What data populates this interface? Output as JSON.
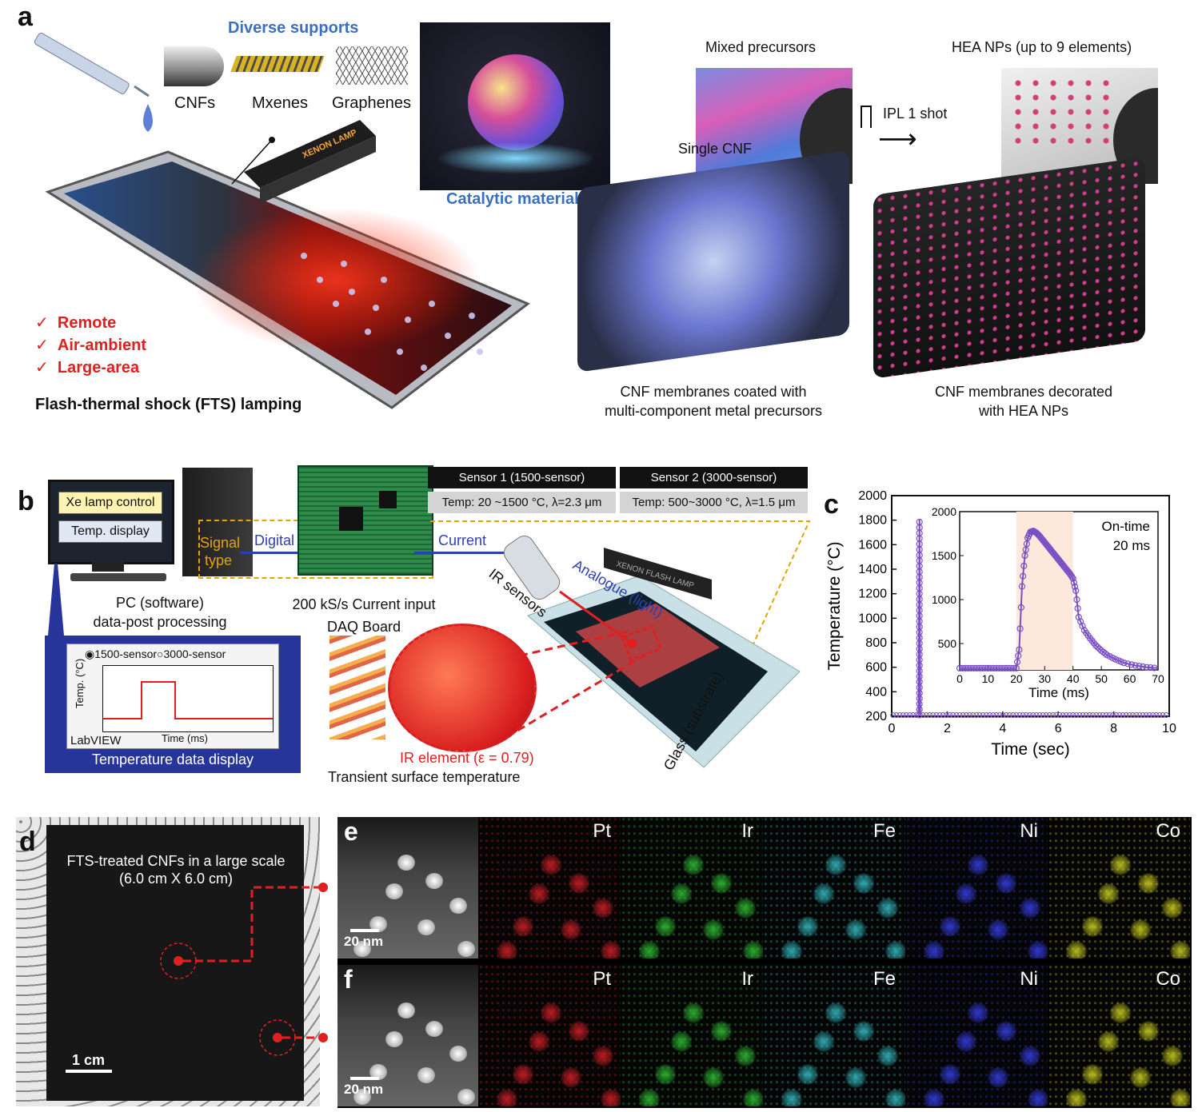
{
  "panel_a": {
    "label": "a",
    "supports_title": "Diverse supports",
    "supports": [
      "CNFs",
      "Mxenes",
      "Graphenes"
    ],
    "catalytic": "Catalytic materials",
    "lamp_text": "XENON LAMP",
    "features": [
      "Remote",
      "Air-ambient",
      "Large-area"
    ],
    "check": "✓",
    "fts_title": "Flash-thermal shock (FTS) lamping",
    "mixed_precursors": "Mixed precursors",
    "single_cnf": "Single CNF",
    "ipl": "IPL 1 shot",
    "hea_title": "HEA NPs (up to 9 elements)",
    "caption_left": [
      "CNF membranes coated with",
      "multi-component metal precursors"
    ],
    "caption_right": [
      "CNF membranes decorated",
      "with HEA NPs"
    ]
  },
  "panel_b": {
    "label": "b",
    "monitor_buttons": [
      "Xe lamp control",
      "Temp. display"
    ],
    "pc_caption": [
      "PC (software)",
      "data-post processing"
    ],
    "signal_type": [
      "Signal",
      "type"
    ],
    "digital": "Digital",
    "current": "Current",
    "daq_caption": [
      "200 kS/s Current input",
      "DAQ Board"
    ],
    "sensor1_head": "Sensor 1 (1500-sensor)",
    "sensor1_spec": "Temp: 20 ~1500 °C, λ=2.3 μm",
    "sensor2_head": "Sensor 2 (3000-sensor)",
    "sensor2_spec": "Temp: 500~3000 °C, λ=1.5 μm",
    "ir_sensors": "IR sensors",
    "analogue": "Analogue (light)",
    "flash_lamp": "XENON FLASH LAMP",
    "legend": [
      "1500-sensor",
      "3000-sensor"
    ],
    "temp_axis": "Temp. (°C)",
    "time_axis": "Time (ms)",
    "labview": "LabVIEW",
    "display_caption": "Temperature data display",
    "ir_element": "IR element (ε = 0.79)",
    "transient": "Transient surface temperature",
    "glass": "Glass (substrate)"
  },
  "panel_c": {
    "label": "c",
    "ylabel": "Temperature (°C)",
    "xlabel": "Time (sec)",
    "inset_xlabel": "Time (ms)",
    "inset_note": [
      "On-time",
      "20 ms"
    ]
  },
  "panel_d": {
    "label": "d",
    "title": [
      "FTS-treated CNFs in a large scale",
      "(6.0 cm X 6.0 cm)"
    ],
    "scalebar": "1 cm"
  },
  "panel_ef": {
    "labels": [
      "e",
      "f"
    ],
    "elements": [
      "Pt",
      "Ir",
      "Fe",
      "Ni",
      "Co"
    ],
    "element_colors": [
      "#e8232a",
      "#35d43a",
      "#3ad0d8",
      "#3a45ff",
      "#e2e626"
    ],
    "scalebar": "20 nm"
  },
  "chart_data": {
    "type": "scatter",
    "xlabel": "Time (sec)",
    "ylabel": "Temperature (°C)",
    "xlim": [
      0,
      10
    ],
    "ylim": [
      200,
      2000
    ],
    "xticks": [
      0,
      2,
      4,
      6,
      8,
      10
    ],
    "yticks": [
      200,
      400,
      600,
      800,
      1000,
      1200,
      1400,
      1600,
      1800,
      2000
    ],
    "main": {
      "baseline": 210,
      "peak_time": 1.0,
      "peak_value": 1810
    },
    "inset": {
      "xlabel": "Time (ms)",
      "xlim": [
        0,
        70
      ],
      "ylim": [
        200,
        2000
      ],
      "xticks": [
        0,
        10,
        20,
        30,
        40,
        50,
        60,
        70
      ],
      "yticks": [
        500,
        1000,
        1500,
        2000
      ],
      "on_time_window": [
        20,
        40
      ],
      "points": [
        [
          0,
          220
        ],
        [
          20,
          220
        ],
        [
          21,
          430
        ],
        [
          22,
          1150
        ],
        [
          23,
          1500
        ],
        [
          24,
          1700
        ],
        [
          25,
          1770
        ],
        [
          26,
          1780
        ],
        [
          27,
          1760
        ],
        [
          28,
          1730
        ],
        [
          29,
          1690
        ],
        [
          30,
          1650
        ],
        [
          31,
          1610
        ],
        [
          32,
          1570
        ],
        [
          33,
          1530
        ],
        [
          34,
          1490
        ],
        [
          35,
          1450
        ],
        [
          36,
          1410
        ],
        [
          37,
          1370
        ],
        [
          38,
          1330
        ],
        [
          39,
          1290
        ],
        [
          40,
          1240
        ],
        [
          41,
          1100
        ],
        [
          42,
          800
        ],
        [
          44,
          650
        ],
        [
          46,
          560
        ],
        [
          48,
          480
        ],
        [
          50,
          420
        ],
        [
          52,
          370
        ],
        [
          55,
          320
        ],
        [
          58,
          280
        ],
        [
          62,
          250
        ],
        [
          66,
          230
        ],
        [
          70,
          220
        ]
      ]
    }
  }
}
